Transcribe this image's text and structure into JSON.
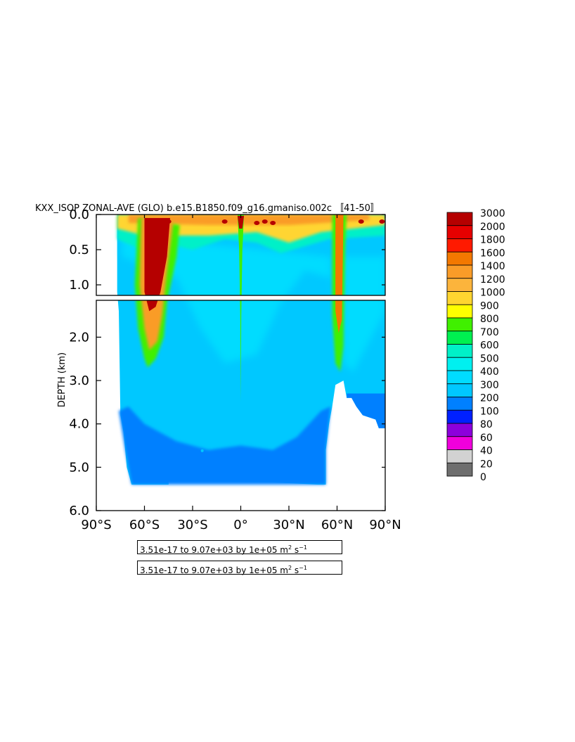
{
  "chart_data": {
    "type": "heatmap",
    "title": "KXX_ISOP ZONAL-AVE (GLO) b.e15.B1850.f09_g16.gmaniso.002c 〚41-50〛",
    "xlabel": "",
    "ylabel": "DEPTH (km)",
    "xlim": [
      -90,
      90
    ],
    "ylim_upper": [
      0.0,
      1.15
    ],
    "ylim_lower": [
      1.15,
      6.0
    ],
    "x_ticks": [
      {
        "value": -90,
        "label": "90°S"
      },
      {
        "value": -60,
        "label": "60°S"
      },
      {
        "value": -30,
        "label": "30°S"
      },
      {
        "value": 0,
        "label": "0°"
      },
      {
        "value": 30,
        "label": "30°N"
      },
      {
        "value": 60,
        "label": "60°N"
      },
      {
        "value": 90,
        "label": "90°N"
      }
    ],
    "y_ticks_upper": [
      {
        "value": 0.0,
        "label": "0.0"
      },
      {
        "value": 0.5,
        "label": "0.5"
      },
      {
        "value": 1.0,
        "label": "1.0"
      }
    ],
    "y_ticks_lower": [
      {
        "value": 2.0,
        "label": "2.0"
      },
      {
        "value": 3.0,
        "label": "3.0"
      },
      {
        "value": 4.0,
        "label": "4.0"
      },
      {
        "value": 5.0,
        "label": "5.0"
      },
      {
        "value": 6.0,
        "label": "6.0"
      }
    ],
    "colorbar": {
      "levels": [
        "3000",
        "2000",
        "1800",
        "1600",
        "1400",
        "1200",
        "1000",
        "900",
        "800",
        "700",
        "600",
        "500",
        "400",
        "300",
        "200",
        "100",
        "80",
        "60",
        "40",
        "20",
        "0"
      ],
      "colors": [
        "#b50000",
        "#e60000",
        "#ff1a00",
        "#f37800",
        "#fa9c28",
        "#fcb43c",
        "#ffd530",
        "#ffff00",
        "#40f000",
        "#00f050",
        "#00f0c8",
        "#00f0f0",
        "#00dcff",
        "#00c8ff",
        "#0080ff",
        "#0020ff",
        "#8c00dc",
        "#f000dc",
        "#d2d2d2",
        "#6e6e6e"
      ]
    },
    "regions": [
      {
        "name": "ocean-background",
        "value": 250,
        "x_range": [
          -77,
          90
        ],
        "depth_range": [
          0,
          5.4
        ]
      },
      {
        "name": "deep-layer",
        "value": 150,
        "x_range": [
          -75,
          53
        ],
        "depth_range": [
          3.6,
          5.4
        ]
      },
      {
        "name": "upper-ocean-mixed",
        "value": 1000,
        "x_range": [
          -77,
          90
        ],
        "depth_range": [
          0,
          0.3
        ]
      },
      {
        "name": "southern-ocean-maximum",
        "value": 3000,
        "x_range": [
          -58,
          -43
        ],
        "depth_range": [
          0,
          1.9
        ]
      },
      {
        "name": "equatorial-maximum",
        "value": 2000,
        "x_range": [
          -1,
          1
        ],
        "depth_range": [
          0,
          0.25
        ]
      },
      {
        "name": "north-atlantic-maximum",
        "value": 1400,
        "x_range": [
          59,
          64
        ],
        "depth_range": [
          0,
          2.6
        ]
      }
    ]
  },
  "info_lines": [
    {
      "text": "3.51e-17 to 9.07e+03 by 1e+05 m",
      "sup1": "2",
      "mid": " s",
      "sup2": "−1"
    },
    {
      "text": "3.51e-17 to 9.07e+03 by 1e+05 m",
      "sup1": "2",
      "mid": " s",
      "sup2": "−1"
    }
  ]
}
